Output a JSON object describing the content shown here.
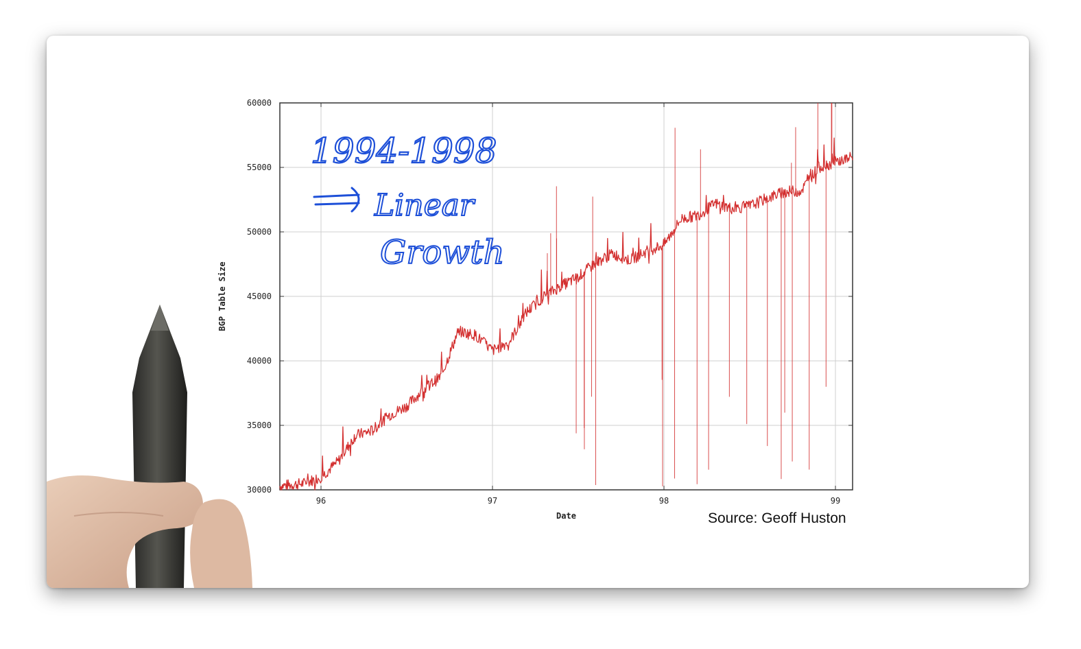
{
  "chart_data": {
    "type": "line",
    "title": "",
    "xlabel": "Date",
    "ylabel": "BGP Table Size",
    "x_ticks": [
      "96",
      "97",
      "98",
      "99"
    ],
    "y_ticks": [
      "30000",
      "35000",
      "40000",
      "45000",
      "50000",
      "55000",
      "60000"
    ],
    "xlim": [
      1995.76,
      1999.1
    ],
    "ylim": [
      30000,
      60000
    ],
    "grid": true,
    "series": [
      {
        "color": "#d32f2f",
        "x": [
          1995.76,
          1995.9,
          1996.0,
          1996.1,
          1996.2,
          1996.3,
          1996.4,
          1996.5,
          1996.6,
          1996.7,
          1996.8,
          1996.9,
          1997.0,
          1997.1,
          1997.2,
          1997.3,
          1997.4,
          1997.5,
          1997.6,
          1997.7,
          1997.8,
          1997.9,
          1998.0,
          1998.1,
          1998.2,
          1998.3,
          1998.4,
          1998.5,
          1998.6,
          1998.7,
          1998.8,
          1998.9,
          1999.0,
          1999.1
        ],
        "y": [
          30300,
          30500,
          31000,
          32200,
          34200,
          34600,
          35800,
          36500,
          37800,
          38800,
          42300,
          42000,
          40800,
          41500,
          43800,
          45000,
          45800,
          46500,
          47600,
          48300,
          47800,
          48500,
          49000,
          51000,
          51300,
          52200,
          51800,
          52000,
          52600,
          53100,
          53200,
          55000,
          55400,
          55800
        ]
      }
    ]
  },
  "annotations": {
    "line1": "1994-1998",
    "line2": "Linear",
    "line3": "Growth"
  },
  "source_text": "Source: Geoff Huston",
  "colors": {
    "series": "#d32f2f",
    "annotation": "#1d4fd8"
  }
}
